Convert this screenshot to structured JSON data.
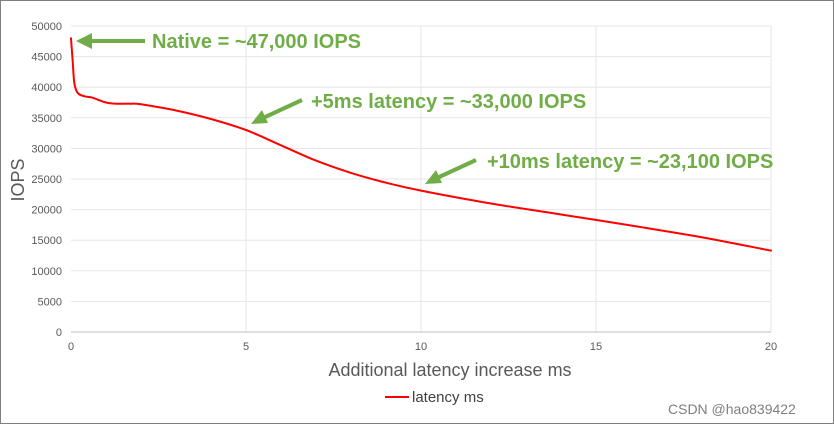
{
  "chart_data": {
    "type": "line",
    "xlabel": "Additional latency increase ms",
    "ylabel": "IOPS",
    "xlim": [
      0,
      20
    ],
    "ylim": [
      0,
      50000
    ],
    "x_ticks": [
      "0",
      "5",
      "10",
      "15",
      "20"
    ],
    "y_ticks": [
      "0",
      "5000",
      "10000",
      "15000",
      "20000",
      "25000",
      "30000",
      "35000",
      "40000",
      "45000",
      "50000"
    ],
    "grid": true,
    "legend": "bottom",
    "series": [
      {
        "name": "latency ms",
        "color": "#ff0000",
        "points": [
          [
            0,
            48000
          ],
          [
            0.05,
            44000
          ],
          [
            0.1,
            40500
          ],
          [
            0.2,
            39000
          ],
          [
            0.4,
            38500
          ],
          [
            0.6,
            38300
          ],
          [
            1.0,
            37500
          ],
          [
            1.3,
            37300
          ],
          [
            1.7,
            37300
          ],
          [
            2,
            37200
          ],
          [
            3,
            36200
          ],
          [
            4,
            34800
          ],
          [
            5,
            33000
          ],
          [
            6,
            30500
          ],
          [
            7,
            28000
          ],
          [
            8,
            26000
          ],
          [
            9,
            24400
          ],
          [
            10,
            23100
          ],
          [
            12,
            21000
          ],
          [
            14,
            19200
          ],
          [
            16,
            17400
          ],
          [
            18,
            15500
          ],
          [
            20,
            13300
          ]
        ]
      }
    ],
    "annotations": [
      {
        "text": "Native = ~47,000 IOPS",
        "x": 0,
        "y": 47000
      },
      {
        "text": "+5ms latency = ~33,000 IOPS",
        "x": 5,
        "y": 33000
      },
      {
        "text": "+10ms latency = ~23,100 IOPS",
        "x": 10,
        "y": 23100
      }
    ],
    "annotation_color": "#70ad47"
  },
  "watermark": "CSDN @hao839422"
}
